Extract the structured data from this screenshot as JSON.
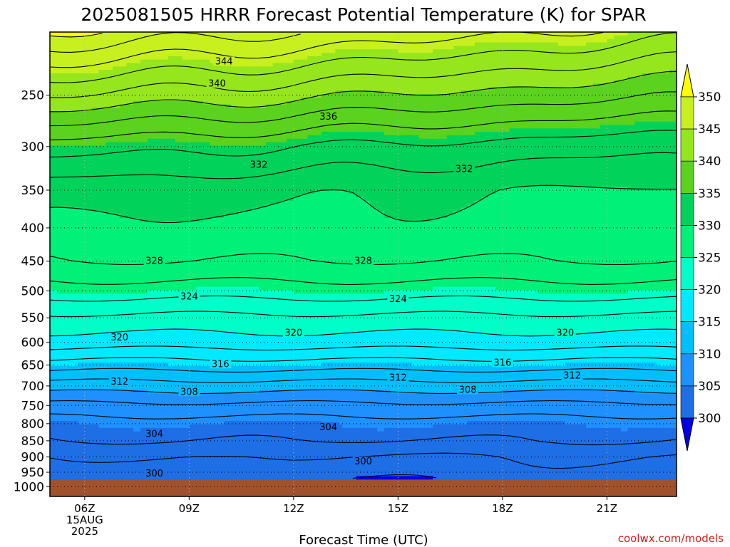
{
  "title": "2025081505 HRRR Forecast Potential Temperature (K) for SPAR",
  "credit": "coolwx.com/models",
  "chart_data": {
    "type": "heatmap",
    "title": "2025081505 HRRR Forecast Potential Temperature (K) for SPAR",
    "xlabel": "Forecast Time (UTC)",
    "ylabel": "",
    "x_ticks": [
      {
        "hour": 6,
        "label": "06Z",
        "sub1": "15AUG",
        "sub2": "2025"
      },
      {
        "hour": 9,
        "label": "09Z"
      },
      {
        "hour": 12,
        "label": "12Z"
      },
      {
        "hour": 15,
        "label": "15Z"
      },
      {
        "hour": 18,
        "label": "18Z"
      },
      {
        "hour": 21,
        "label": "21Z"
      }
    ],
    "xlim": [
      5,
      23
    ],
    "y_ticks": [
      250,
      300,
      350,
      400,
      450,
      500,
      550,
      600,
      650,
      700,
      750,
      800,
      850,
      900,
      950,
      1000
    ],
    "ylim": [
      200,
      1035
    ],
    "y_scale": "log",
    "y_inverted": true,
    "surface_pressure": 975,
    "colorbar": {
      "levels": [
        300,
        305,
        310,
        315,
        320,
        325,
        330,
        335,
        340,
        345,
        350
      ],
      "labels": [
        "300",
        "305",
        "310",
        "315",
        "320",
        "325",
        "330",
        "335",
        "340",
        "345",
        "350"
      ],
      "colors": [
        "#0000e8",
        "#1e6ee6",
        "#1e90ff",
        "#00bfff",
        "#00eaff",
        "#00ffc8",
        "#00f078",
        "#00d25a",
        "#5ad21e",
        "#96e61e",
        "#c8f01e",
        "#ffff00"
      ],
      "extend": "both"
    },
    "contour_interval": 2,
    "grid": true,
    "profile_hour_6": [
      {
        "p": 200,
        "theta": 350
      },
      {
        "p": 250,
        "theta": 342
      },
      {
        "p": 300,
        "theta": 335
      },
      {
        "p": 350,
        "theta": 331
      },
      {
        "p": 400,
        "theta": 329.5
      },
      {
        "p": 450,
        "theta": 328
      },
      {
        "p": 500,
        "theta": 325
      },
      {
        "p": 550,
        "theta": 321.5
      },
      {
        "p": 600,
        "theta": 319
      },
      {
        "p": 650,
        "theta": 315
      },
      {
        "p": 700,
        "theta": 311
      },
      {
        "p": 750,
        "theta": 307.5
      },
      {
        "p": 800,
        "theta": 305
      },
      {
        "p": 850,
        "theta": 304
      },
      {
        "p": 900,
        "theta": 302
      },
      {
        "p": 950,
        "theta": 301
      },
      {
        "p": 975,
        "theta": 300.5
      }
    ],
    "contour_labels": [
      {
        "text": "344",
        "hour": 10,
        "p": 222
      },
      {
        "text": "340",
        "hour": 9.8,
        "p": 240
      },
      {
        "text": "336",
        "hour": 13,
        "p": 270
      },
      {
        "text": "332",
        "hour": 11,
        "p": 320
      },
      {
        "text": "332",
        "hour": 16.9,
        "p": 325
      },
      {
        "text": "328",
        "hour": 8,
        "p": 450
      },
      {
        "text": "328",
        "hour": 14,
        "p": 450
      },
      {
        "text": "324",
        "hour": 9,
        "p": 510
      },
      {
        "text": "324",
        "hour": 15,
        "p": 515
      },
      {
        "text": "320",
        "hour": 7,
        "p": 590
      },
      {
        "text": "320",
        "hour": 12,
        "p": 580
      },
      {
        "text": "320",
        "hour": 19.8,
        "p": 580
      },
      {
        "text": "316",
        "hour": 9.9,
        "p": 648
      },
      {
        "text": "316",
        "hour": 18,
        "p": 645
      },
      {
        "text": "312",
        "hour": 7,
        "p": 690
      },
      {
        "text": "312",
        "hour": 15,
        "p": 680
      },
      {
        "text": "312",
        "hour": 20,
        "p": 675
      },
      {
        "text": "308",
        "hour": 9,
        "p": 715
      },
      {
        "text": "308",
        "hour": 17,
        "p": 710
      },
      {
        "text": "304",
        "hour": 8,
        "p": 830
      },
      {
        "text": "304",
        "hour": 13,
        "p": 810
      },
      {
        "text": "300",
        "hour": 14,
        "p": 915
      },
      {
        "text": "300",
        "hour": 8,
        "p": 955
      }
    ]
  }
}
